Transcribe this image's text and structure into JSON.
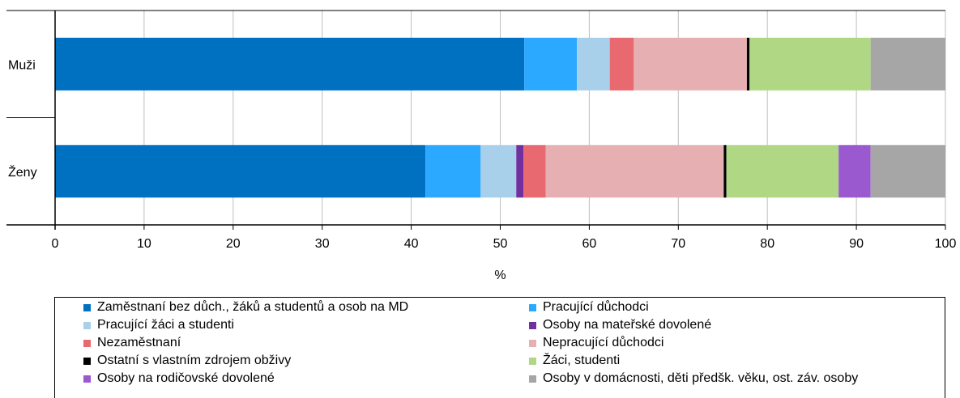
{
  "chart_data": {
    "type": "bar",
    "orientation": "horizontal",
    "stacked": true,
    "categories": [
      "Muži",
      "Ženy"
    ],
    "xlabel": "%",
    "xlim": [
      0,
      100
    ],
    "xticks": [
      0,
      10,
      20,
      30,
      40,
      50,
      60,
      70,
      80,
      90,
      100
    ],
    "grid": true,
    "legend_position": "bottom",
    "series": [
      {
        "name": "Zaměstnaní bez důch., žáků a studentů a osob na MD",
        "color": "#0070c0",
        "values": [
          52.7,
          41.6
        ]
      },
      {
        "name": "Pracující důchodci",
        "color": "#2ba8ff",
        "values": [
          5.9,
          6.2
        ]
      },
      {
        "name": "Pracující žáci a studenti",
        "color": "#a9d0ea",
        "values": [
          3.7,
          4.0
        ]
      },
      {
        "name": "Osoby na mateřské dovolené",
        "color": "#7030a0",
        "values": [
          0.0,
          0.8
        ]
      },
      {
        "name": "Nezaměstnaní",
        "color": "#e8696f",
        "values": [
          2.7,
          2.5
        ]
      },
      {
        "name": "Nepracující důchodci",
        "color": "#e6b0b3",
        "values": [
          12.7,
          20.0
        ]
      },
      {
        "name": "Ostatní s vlastním zdrojem obživy",
        "color": "#000000",
        "values": [
          0.3,
          0.3
        ]
      },
      {
        "name": "Žáci, studenti",
        "color": "#b0d884",
        "values": [
          13.6,
          12.6
        ]
      },
      {
        "name": "Osoby na rodičovské dovolené",
        "color": "#9b59d0",
        "values": [
          0.0,
          3.6
        ]
      },
      {
        "name": "Osoby v domácnosti, děti předšk. věku, ost. záv. osoby",
        "color": "#a6a6a6",
        "values": [
          8.4,
          8.4
        ]
      }
    ]
  }
}
